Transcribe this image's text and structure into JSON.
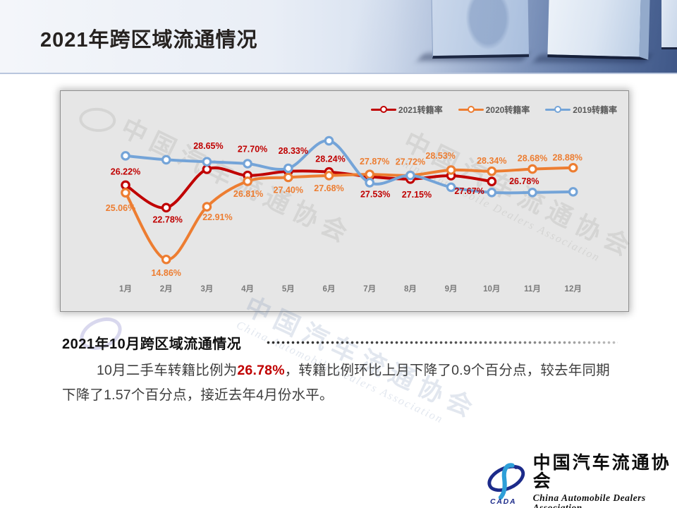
{
  "slide": {
    "title": "2021年跨区域流通情况",
    "section": {
      "heading": "2021年10月跨区域流通情况",
      "paragraph": {
        "part1": "10月二手车转籍比例为",
        "highlight": "26.78%",
        "part2": "，转籍比例环比上月下降了0.9个百分点，较去年同期下降了1.57个百分点，接近去年4月份水平。"
      }
    },
    "watermark": {
      "zh": "中国汽车流通协会",
      "en": "China Automobile Dealers Association"
    },
    "logo": {
      "acronym": "CADA",
      "name_zh": "中国汽车流通协会",
      "name_en": "China Automobile Dealers Association"
    }
  },
  "chart_data": {
    "type": "line",
    "title": "",
    "xlabel": "",
    "ylabel": "",
    "categories": [
      "1月",
      "2月",
      "3月",
      "4月",
      "5月",
      "6月",
      "7月",
      "8月",
      "9月",
      "10月",
      "11月",
      "12月"
    ],
    "ylim": [
      13,
      35
    ],
    "grid": false,
    "legend_position": "top-right",
    "series": [
      {
        "name": "2021转籍率",
        "color": "#C00000",
        "values": [
          26.22,
          22.78,
          28.65,
          27.7,
          28.33,
          28.24,
          27.53,
          27.15,
          27.67,
          26.78,
          null,
          null
        ],
        "labels": [
          "26.22%",
          "22.78%",
          "28.65%",
          "27.70%",
          "28.33%",
          "28.24%",
          "27.53%",
          "27.15%",
          "27.67%",
          "26.78%",
          "",
          ""
        ],
        "label_offsets": [
          [
            0,
            -15
          ],
          [
            2,
            21
          ],
          [
            2,
            -29
          ],
          [
            7,
            -33
          ],
          [
            7,
            -25
          ],
          [
            2,
            -14
          ],
          [
            8,
            29
          ],
          [
            9,
            26
          ],
          [
            26,
            26
          ],
          [
            46,
            4
          ],
          [
            0,
            0
          ],
          [
            0,
            0
          ]
        ]
      },
      {
        "name": "2020转籍率",
        "color": "#ED7D31",
        "values": [
          25.06,
          14.86,
          22.91,
          26.81,
          27.4,
          27.68,
          27.87,
          27.72,
          28.53,
          28.34,
          28.68,
          28.88
        ],
        "labels": [
          "25.06%",
          "14.86%",
          "22.91%",
          "26.81%",
          "27.40%",
          "27.68%",
          "27.87%",
          "27.72%",
          "28.53%",
          "28.34%",
          "28.68%",
          "28.88%"
        ],
        "label_offsets": [
          [
            -7,
            26
          ],
          [
            0,
            23
          ],
          [
            15,
            19
          ],
          [
            1,
            22
          ],
          [
            0,
            22
          ],
          [
            0,
            22
          ],
          [
            7,
            -14
          ],
          [
            0,
            -15
          ],
          [
            -15,
            -16
          ],
          [
            0,
            -11
          ],
          [
            0,
            -11
          ],
          [
            -8,
            -10
          ]
        ]
      },
      {
        "name": "2019转籍率",
        "color": "#74A4D8",
        "values": [
          30.7,
          30.1,
          29.8,
          29.5,
          28.8,
          33.0,
          26.6,
          27.7,
          25.9,
          25.1,
          25.1,
          25.2
        ],
        "labels": null,
        "label_offsets": null
      }
    ]
  }
}
